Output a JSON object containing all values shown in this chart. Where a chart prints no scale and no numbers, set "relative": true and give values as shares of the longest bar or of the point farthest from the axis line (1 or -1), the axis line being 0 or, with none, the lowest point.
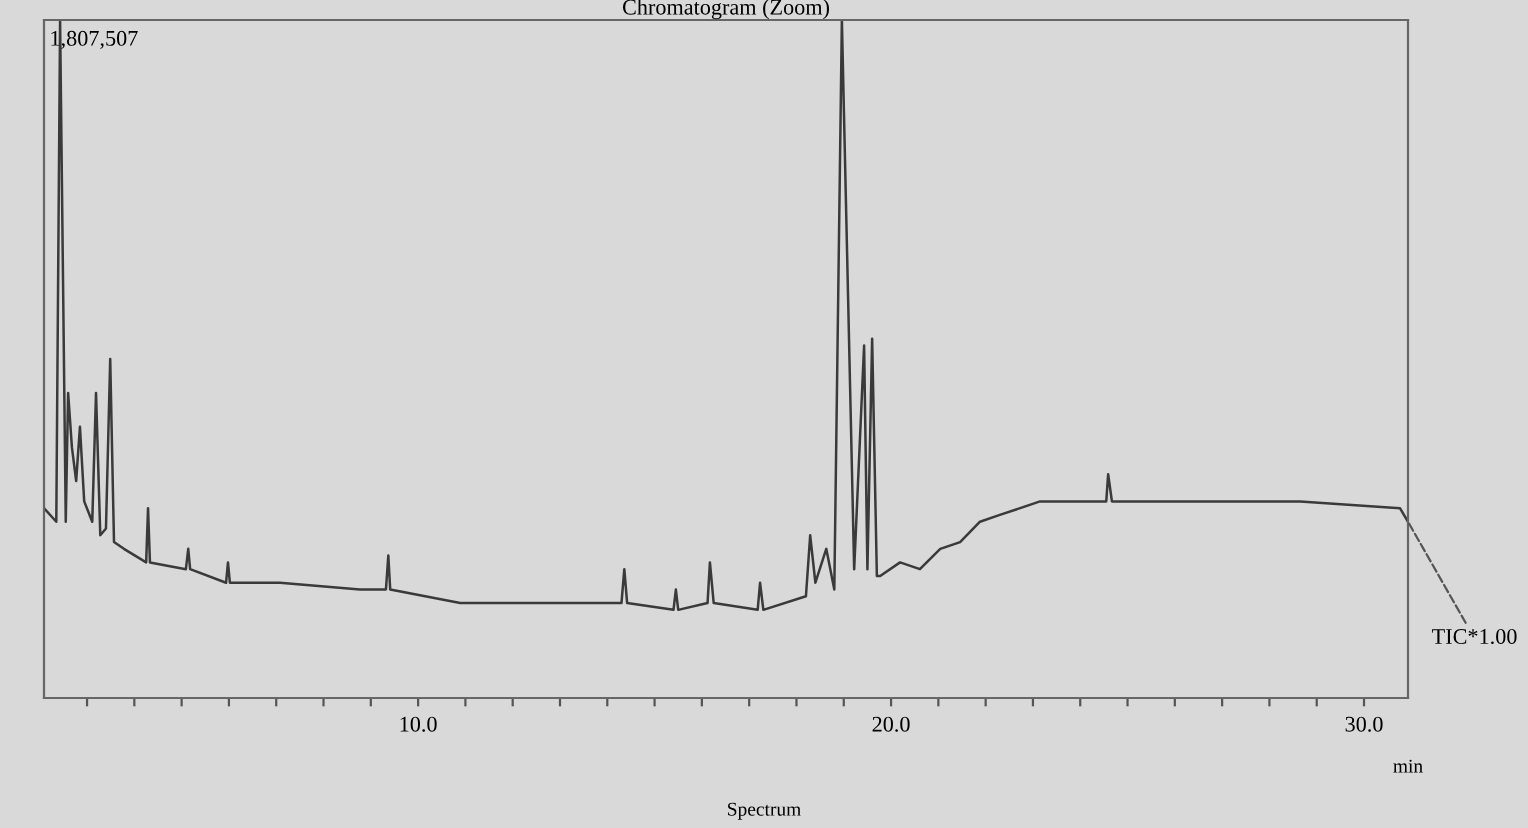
{
  "chart_data": {
    "type": "line",
    "title": "Chromatogram (Zoom)",
    "xlabel": "min",
    "relative": true,
    "color": "#3a3a3a",
    "grid": false,
    "legend": false,
    "tick_labels": "x",
    "x": [
      2.09,
      2.35,
      2.43,
      2.55,
      2.6,
      2.68,
      2.77,
      2.85,
      2.94,
      3.11,
      3.19,
      3.28,
      3.4,
      3.49,
      3.57,
      3.78,
      4.25,
      4.29,
      4.33,
      5.09,
      5.14,
      5.18,
      5.94,
      5.98,
      6.02,
      7.08,
      8.77,
      9.32,
      9.37,
      9.41,
      10.89,
      12.11,
      13.42,
      14.3,
      14.36,
      14.42,
      15.4,
      15.45,
      15.5,
      16.12,
      16.17,
      16.25,
      17.18,
      17.23,
      17.3,
      18.2,
      18.29,
      18.4,
      18.63,
      18.8,
      18.96,
      19.22,
      19.43,
      19.5,
      19.6,
      19.7,
      19.77,
      20.19,
      20.61,
      21.04,
      21.46,
      21.88,
      22.3,
      23.15,
      24.55,
      24.59,
      24.67,
      26.53,
      28.65,
      30.76,
      30.93
    ],
    "values": [
      0.28,
      0.26,
      1.0,
      0.26,
      0.45,
      0.37,
      0.32,
      0.4,
      0.29,
      0.26,
      0.45,
      0.24,
      0.25,
      0.5,
      0.23,
      0.22,
      0.2,
      0.28,
      0.2,
      0.19,
      0.22,
      0.19,
      0.17,
      0.2,
      0.17,
      0.17,
      0.16,
      0.16,
      0.21,
      0.16,
      0.14,
      0.14,
      0.14,
      0.14,
      0.19,
      0.14,
      0.13,
      0.16,
      0.13,
      0.14,
      0.2,
      0.14,
      0.13,
      0.17,
      0.13,
      0.15,
      0.24,
      0.17,
      0.22,
      0.16,
      1.0,
      0.19,
      0.52,
      0.19,
      0.53,
      0.18,
      0.18,
      0.2,
      0.19,
      0.22,
      0.23,
      0.26,
      0.27,
      0.29,
      0.29,
      0.33,
      0.29,
      0.29,
      0.29,
      0.28,
      0.26
    ],
    "xlim": [
      2.09,
      30.93
    ],
    "xticks": [
      {
        "value": 3,
        "label": null
      },
      {
        "value": 4,
        "label": null
      },
      {
        "value": 5,
        "label": null
      },
      {
        "value": 6,
        "label": null
      },
      {
        "value": 7,
        "label": null
      },
      {
        "value": 8,
        "label": null
      },
      {
        "value": 9,
        "label": null
      },
      {
        "value": 10,
        "label": "10.0"
      },
      {
        "value": 11,
        "label": null
      },
      {
        "value": 12,
        "label": null
      },
      {
        "value": 13,
        "label": null
      },
      {
        "value": 14,
        "label": null
      },
      {
        "value": 15,
        "label": null
      },
      {
        "value": 16,
        "label": null
      },
      {
        "value": 17,
        "label": null
      },
      {
        "value": 18,
        "label": null
      },
      {
        "value": 19,
        "label": null
      },
      {
        "value": 20,
        "label": "20.0"
      },
      {
        "value": 21,
        "label": null
      },
      {
        "value": 22,
        "label": null
      },
      {
        "value": 23,
        "label": null
      },
      {
        "value": 24,
        "label": null
      },
      {
        "value": 25,
        "label": null
      },
      {
        "value": 26,
        "label": null
      },
      {
        "value": 27,
        "label": null
      },
      {
        "value": 28,
        "label": null
      },
      {
        "value": 29,
        "label": null
      },
      {
        "value": 30,
        "label": "30.0"
      }
    ],
    "annotations": [
      "1,807,507",
      {
        "text": "TIC*1.00",
        "x": 30.93,
        "y": 0.26
      },
      "Spectrum"
    ]
  }
}
